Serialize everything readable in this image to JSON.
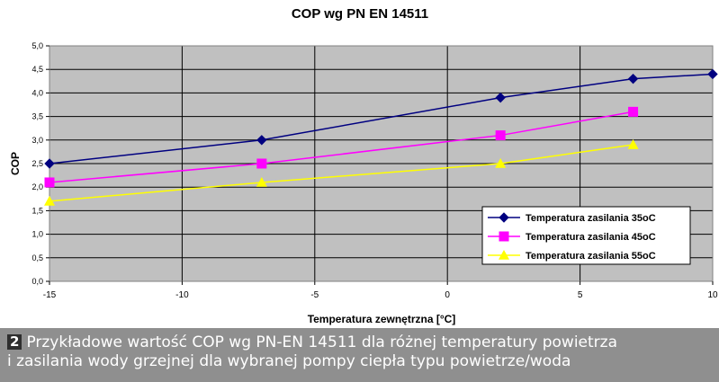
{
  "chart_data": {
    "type": "line",
    "title": "COP wg PN EN 14511",
    "xlabel": "Temperatura zewnętrzna [°C]",
    "ylabel": "COP",
    "xlim": [
      -15,
      10
    ],
    "ylim": [
      0,
      5
    ],
    "x_ticks": [
      "-15",
      "-10",
      "-5",
      "0",
      "5",
      "10"
    ],
    "y_ticks": [
      "0,0",
      "0,5",
      "1,0",
      "1,5",
      "2,0",
      "2,5",
      "3,0",
      "3,5",
      "4,0",
      "4,5",
      "5,0"
    ],
    "grid": true,
    "legend_position": "bottom-right",
    "series": [
      {
        "name": "Temperatura zasilania 35oC",
        "color": "#000080",
        "marker": "diamond",
        "x": [
          -15,
          -7,
          2,
          7,
          10
        ],
        "values": [
          2.5,
          3.0,
          3.9,
          4.3,
          4.4
        ]
      },
      {
        "name": "Temperatura zasilania 45oC",
        "color": "#ff00ff",
        "marker": "square",
        "x": [
          -15,
          -7,
          2,
          7
        ],
        "values": [
          2.1,
          2.5,
          3.1,
          3.6
        ]
      },
      {
        "name": "Temperatura zasilania 55oC",
        "color": "#ffff00",
        "marker": "triangle",
        "x": [
          -15,
          -7,
          2,
          7
        ],
        "values": [
          1.7,
          2.1,
          2.5,
          2.9
        ]
      }
    ]
  },
  "caption": {
    "badge": "2",
    "line1": "Przykładowe wartość COP wg PN-EN 14511 dla różnej temperatury powietrza",
    "line2": "i zasilania wody grzejnej dla wybranej pompy ciepła typu powietrze/woda"
  }
}
